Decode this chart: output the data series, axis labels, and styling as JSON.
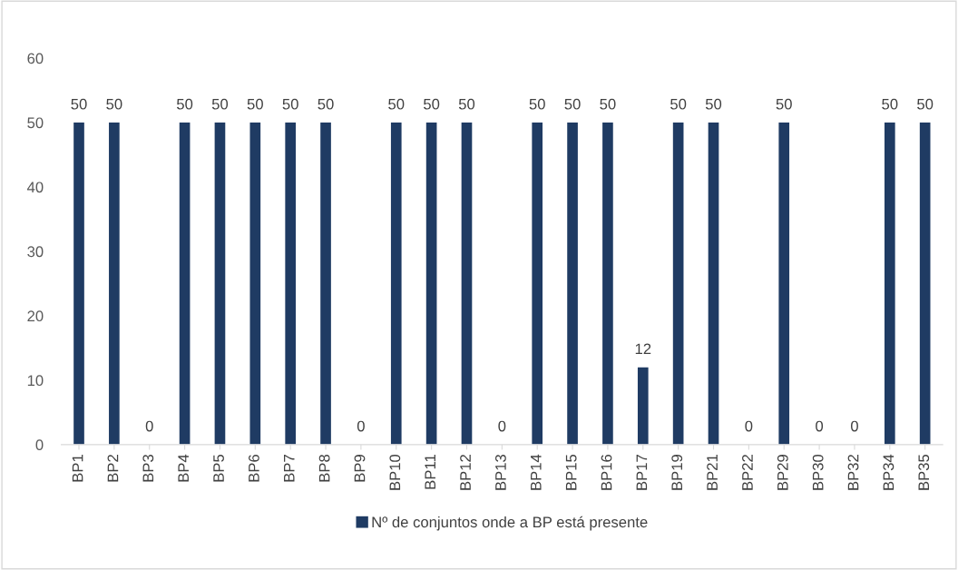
{
  "chart_data": {
    "type": "bar",
    "categories": [
      "BP1",
      "BP2",
      "BP3",
      "BP4",
      "BP5",
      "BP6",
      "BP7",
      "BP8",
      "BP9",
      "BP10",
      "BP11",
      "BP12",
      "BP13",
      "BP14",
      "BP15",
      "BP16",
      "BP17",
      "BP19",
      "BP21",
      "BP22",
      "BP29",
      "BP30",
      "BP32",
      "BP34",
      "BP35"
    ],
    "series": [
      {
        "name": "Nº de conjuntos onde a BP está presente",
        "color": "#1f3b63",
        "values": [
          50,
          50,
          0,
          50,
          50,
          50,
          50,
          50,
          0,
          50,
          50,
          50,
          0,
          50,
          50,
          50,
          12,
          50,
          50,
          0,
          50,
          0,
          0,
          50,
          50
        ]
      }
    ],
    "ylim": [
      0,
      60
    ],
    "yticks": [
      0,
      10,
      20,
      30,
      40,
      50,
      60
    ],
    "data_labels": true,
    "grid": false,
    "legend": "bottom"
  }
}
